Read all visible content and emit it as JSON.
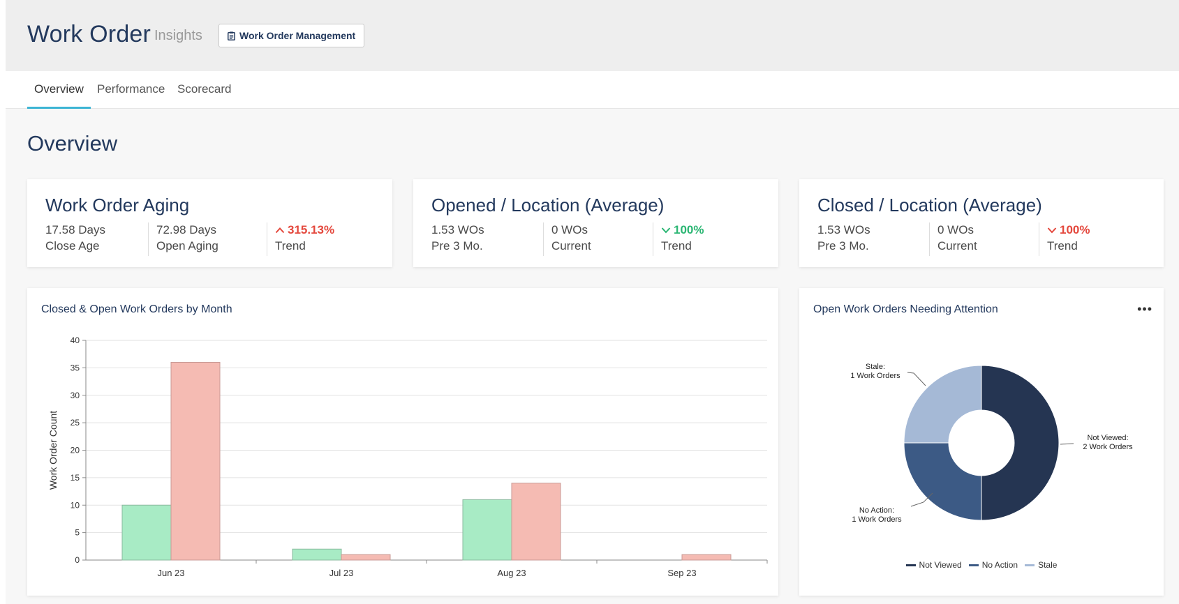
{
  "header": {
    "title": "Work Order",
    "subtitle": "Insights",
    "management_button": "Work Order Management",
    "management_icon": "clipboard-icon"
  },
  "tabs": [
    {
      "label": "Overview",
      "active": true
    },
    {
      "label": "Performance",
      "active": false
    },
    {
      "label": "Scorecard",
      "active": false
    }
  ],
  "section_title": "Overview",
  "kpis": [
    {
      "title": "Work Order Aging",
      "cells": [
        {
          "value": "17.58 Days",
          "label": "Close Age"
        },
        {
          "value": "72.98 Days",
          "label": "Open Aging"
        },
        {
          "value": "315.13%",
          "label": "Trend",
          "direction": "up",
          "color": "#e4483d"
        }
      ]
    },
    {
      "title": "Opened / Location (Average)",
      "cells": [
        {
          "value": "1.53 WOs",
          "label": "Pre 3 Mo."
        },
        {
          "value": "0 WOs",
          "label": "Current"
        },
        {
          "value": "100%",
          "label": "Trend",
          "direction": "down",
          "color": "#2bb673"
        }
      ]
    },
    {
      "title": "Closed / Location (Average)",
      "cells": [
        {
          "value": "1.53 WOs",
          "label": "Pre 3 Mo."
        },
        {
          "value": "0 WOs",
          "label": "Current"
        },
        {
          "value": "100%",
          "label": "Trend",
          "direction": "down",
          "color": "#e4483d"
        }
      ]
    }
  ],
  "bar_chart": {
    "title": "Closed & Open Work Orders by Month",
    "more_icon": "more-horizontal-icon"
  },
  "donut_chart": {
    "title": "Open Work Orders Needing Attention",
    "more_icon": "more-horizontal-icon"
  },
  "chart_data": [
    {
      "type": "bar",
      "title": "Closed & Open Work Orders by Month",
      "xlabel": "",
      "ylabel": "Work Order Count",
      "categories": [
        "Jun 23",
        "Jul 23",
        "Aug 23",
        "Sep 23"
      ],
      "series": [
        {
          "values": [
            10,
            2,
            11,
            0
          ],
          "color": "#a8ebc5"
        },
        {
          "values": [
            36,
            1,
            14,
            1
          ],
          "color": "#f5bbb3"
        }
      ],
      "ylim": [
        0,
        40
      ],
      "yticks": [
        0,
        5,
        10,
        15,
        20,
        25,
        30,
        35,
        40
      ],
      "grid": true
    },
    {
      "type": "pie",
      "donut": true,
      "title": "Open Work Orders Needing Attention",
      "slices": [
        {
          "name": "Not Viewed",
          "value": 2,
          "label_line1": "Not Viewed:",
          "label_line2": "2 Work Orders",
          "color": "#253552"
        },
        {
          "name": "No Action",
          "value": 1,
          "label_line1": "No Action:",
          "label_line2": "1 Work Orders",
          "color": "#3c5a85"
        },
        {
          "name": "Stale",
          "value": 1,
          "label_line1": "Stale:",
          "label_line2": "1 Work Orders",
          "color": "#a5b9d6"
        }
      ],
      "legend_position": "bottom"
    }
  ]
}
